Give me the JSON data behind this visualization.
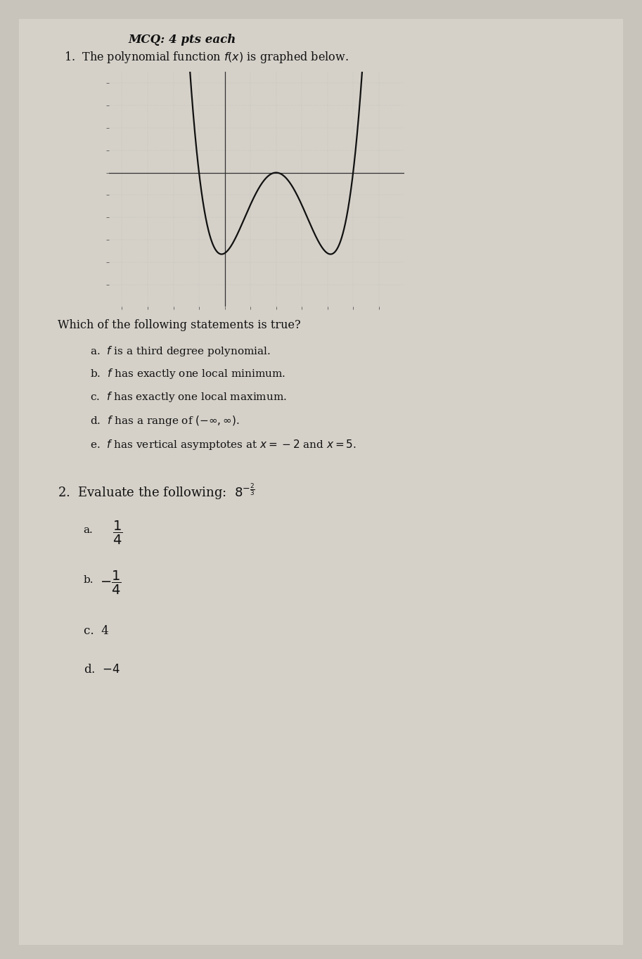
{
  "bg_color": "#c8c4bc",
  "paper_color": "#d8d4cc",
  "title_text": "MCQ: 4 pts each",
  "q1_stem": "1.  The polynomial function $f(x)$ is graphed below.",
  "which_true": "Which of the following statements is true?",
  "q1_choices": [
    "a.  $f$ is a third degree polynomial.",
    "b.  $f$ has exactly one local minimum.",
    "c.  $f$ has exactly one local maximum.",
    "d.  $f$ has a range of $(-\\infty,\\infty)$.",
    "e.  $f$ has vertical asymptotes at $x = -2$ and $x = 5$."
  ],
  "q2_intro": "2.  Evaluate the following:  $8^{-\\frac{2}{3}}$",
  "text_color": "#111111",
  "graph_xlim": [
    -4.5,
    7
  ],
  "graph_ylim": [
    -6,
    4.5
  ],
  "curve_color": "#111111",
  "axis_color": "#333333",
  "tick_color": "#555555",
  "grid_color": "#aaaaaa"
}
